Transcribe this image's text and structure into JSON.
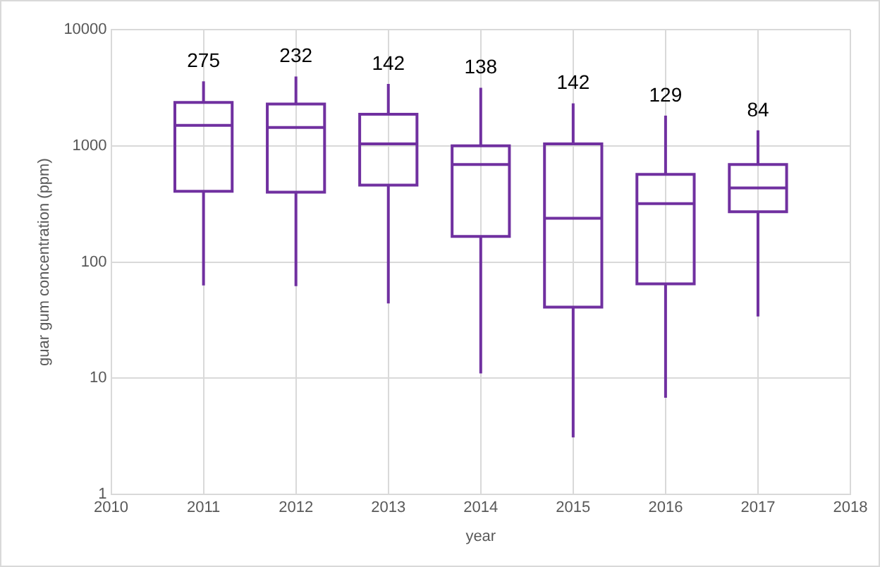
{
  "chart_data": {
    "type": "box",
    "xlabel": "year",
    "ylabel": "guar gum concentration (ppm)",
    "x": [
      2011,
      2012,
      2013,
      2014,
      2015,
      2016,
      2017
    ],
    "color": "#7030a0",
    "boxes": [
      {
        "low": 63,
        "q1": 406,
        "median": 1500,
        "q3": 2360,
        "high": 3590
      },
      {
        "low": 62,
        "q1": 400,
        "median": 1440,
        "q3": 2290,
        "high": 3950
      },
      {
        "low": 44,
        "q1": 460,
        "median": 1040,
        "q3": 1870,
        "high": 3410
      },
      {
        "low": 11,
        "q1": 166,
        "median": 690,
        "q3": 1000,
        "high": 3160
      },
      {
        "low": 3.1,
        "q1": 41,
        "median": 238,
        "q3": 1040,
        "high": 2320
      },
      {
        "low": 6.8,
        "q1": 65,
        "median": 318,
        "q3": 569,
        "high": 1820
      },
      {
        "low": 34,
        "q1": 271,
        "median": 434,
        "q3": 690,
        "high": 1360
      }
    ],
    "xlim": [
      2010,
      2018
    ],
    "xticks": [
      2010,
      2011,
      2012,
      2013,
      2014,
      2015,
      2016,
      2017,
      2018
    ],
    "ylim": [
      1,
      10000
    ],
    "yticks": [
      1,
      10,
      100,
      1000,
      10000
    ],
    "log": "y",
    "grid": true,
    "legend": false,
    "annotations": [
      {
        "text": "275",
        "x": 2011,
        "y": 3590
      },
      {
        "text": "232",
        "x": 2012,
        "y": 3950
      },
      {
        "text": "142",
        "x": 2013,
        "y": 3410
      },
      {
        "text": "138",
        "x": 2014,
        "y": 3160
      },
      {
        "text": "142",
        "x": 2015,
        "y": 2320
      },
      {
        "text": "129",
        "x": 2016,
        "y": 1820
      },
      {
        "text": "84",
        "x": 2017,
        "y": 1360
      }
    ]
  }
}
